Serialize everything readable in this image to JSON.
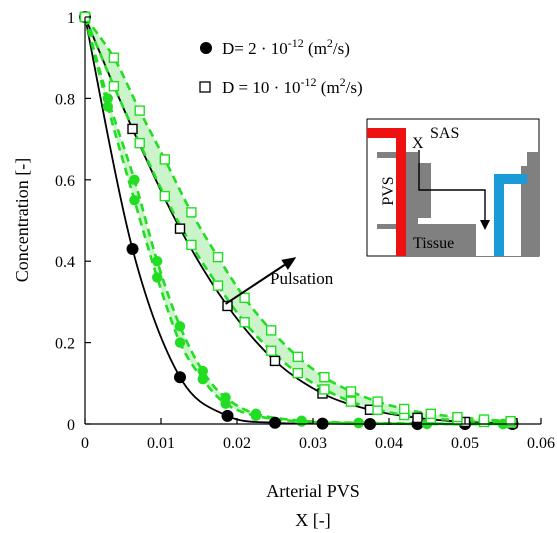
{
  "chart_data": {
    "type": "line",
    "xlabel": "Arterial PVS",
    "xlabel2": "X [-]",
    "ylabel": "Concentration [-]",
    "xlim": [
      0,
      0.06
    ],
    "ylim": [
      0,
      1
    ],
    "x_ticks": [
      "0",
      "0.01",
      "0.02",
      "0.03",
      "0.04",
      "0.05",
      "0.06"
    ],
    "y_ticks": [
      "0",
      "0.2",
      "0.4",
      "0.6",
      "0.8",
      "1"
    ],
    "grid": false,
    "legend_position": "top-center",
    "series": [
      {
        "name": "D= 2 · 10-12 (m2/s)",
        "marker": "filled-circle",
        "color": "#000000",
        "line": "solid",
        "points": [
          {
            "x": 0,
            "y": 1.0
          },
          {
            "x": 0.00625,
            "y": 0.43
          },
          {
            "x": 0.0125,
            "y": 0.115
          },
          {
            "x": 0.01875,
            "y": 0.02
          },
          {
            "x": 0.025,
            "y": 0.003
          },
          {
            "x": 0.03125,
            "y": 0.001
          },
          {
            "x": 0.0375,
            "y": 0.0
          },
          {
            "x": 0.04375,
            "y": 0.0
          },
          {
            "x": 0.05,
            "y": 0.0
          },
          {
            "x": 0.05625,
            "y": 0.0
          }
        ]
      },
      {
        "name": "D = 10 · 10-12 (m2/s)",
        "marker": "open-square",
        "color": "#000000",
        "line": "solid",
        "points": [
          {
            "x": 0,
            "y": 1.0
          },
          {
            "x": 0.00625,
            "y": 0.725
          },
          {
            "x": 0.0125,
            "y": 0.48
          },
          {
            "x": 0.01875,
            "y": 0.29
          },
          {
            "x": 0.025,
            "y": 0.155
          },
          {
            "x": 0.03125,
            "y": 0.075
          },
          {
            "x": 0.0375,
            "y": 0.035
          },
          {
            "x": 0.04375,
            "y": 0.015
          },
          {
            "x": 0.05,
            "y": 0.005
          },
          {
            "x": 0.05625,
            "y": 0.002
          }
        ]
      },
      {
        "name": "",
        "marker": "filled-circle",
        "color": "#22dd22",
        "line": "dashed",
        "band": "low",
        "points": [
          {
            "x": 0,
            "y": 1.0
          },
          {
            "x": 0.003,
            "y": 0.78
          },
          {
            "x": 0.0065,
            "y": 0.55
          },
          {
            "x": 0.0095,
            "y": 0.36
          },
          {
            "x": 0.0125,
            "y": 0.2
          },
          {
            "x": 0.0155,
            "y": 0.11
          },
          {
            "x": 0.0185,
            "y": 0.05
          },
          {
            "x": 0.0225,
            "y": 0.02
          },
          {
            "x": 0.0285,
            "y": 0.006
          },
          {
            "x": 0.036,
            "y": 0.002
          },
          {
            "x": 0.045,
            "y": 0.0
          },
          {
            "x": 0.055,
            "y": 0.0
          }
        ]
      },
      {
        "name": "",
        "marker": "filled-circle",
        "color": "#22dd22",
        "line": "dashed",
        "band": "high",
        "points": [
          {
            "x": 0,
            "y": 1.0
          },
          {
            "x": 0.003,
            "y": 0.8
          },
          {
            "x": 0.0065,
            "y": 0.6
          },
          {
            "x": 0.0095,
            "y": 0.4
          },
          {
            "x": 0.0125,
            "y": 0.24
          },
          {
            "x": 0.0155,
            "y": 0.13
          },
          {
            "x": 0.0185,
            "y": 0.065
          },
          {
            "x": 0.0225,
            "y": 0.025
          },
          {
            "x": 0.0285,
            "y": 0.008
          },
          {
            "x": 0.036,
            "y": 0.003
          },
          {
            "x": 0.045,
            "y": 0.001
          },
          {
            "x": 0.055,
            "y": 0.0
          }
        ]
      },
      {
        "name": "",
        "marker": "open-square",
        "color": "#22dd22",
        "line": "dashed",
        "band": "low",
        "points": [
          {
            "x": 0,
            "y": 1.0
          },
          {
            "x": 0.0038,
            "y": 0.83
          },
          {
            "x": 0.0072,
            "y": 0.69
          },
          {
            "x": 0.0105,
            "y": 0.56
          },
          {
            "x": 0.014,
            "y": 0.44
          },
          {
            "x": 0.0175,
            "y": 0.34
          },
          {
            "x": 0.021,
            "y": 0.25
          },
          {
            "x": 0.0245,
            "y": 0.18
          },
          {
            "x": 0.028,
            "y": 0.125
          },
          {
            "x": 0.0315,
            "y": 0.085
          },
          {
            "x": 0.035,
            "y": 0.055
          },
          {
            "x": 0.0385,
            "y": 0.035
          },
          {
            "x": 0.042,
            "y": 0.022
          },
          {
            "x": 0.0455,
            "y": 0.014
          },
          {
            "x": 0.049,
            "y": 0.009
          },
          {
            "x": 0.0525,
            "y": 0.005
          },
          {
            "x": 0.056,
            "y": 0.003
          }
        ]
      },
      {
        "name": "",
        "marker": "open-square",
        "color": "#22dd22",
        "line": "dashed",
        "band": "high",
        "points": [
          {
            "x": 0,
            "y": 1.0
          },
          {
            "x": 0.0038,
            "y": 0.9
          },
          {
            "x": 0.0072,
            "y": 0.77
          },
          {
            "x": 0.0105,
            "y": 0.65
          },
          {
            "x": 0.014,
            "y": 0.52
          },
          {
            "x": 0.0175,
            "y": 0.41
          },
          {
            "x": 0.021,
            "y": 0.31
          },
          {
            "x": 0.0245,
            "y": 0.23
          },
          {
            "x": 0.028,
            "y": 0.165
          },
          {
            "x": 0.0315,
            "y": 0.115
          },
          {
            "x": 0.035,
            "y": 0.08
          },
          {
            "x": 0.0385,
            "y": 0.055
          },
          {
            "x": 0.042,
            "y": 0.037
          },
          {
            "x": 0.0455,
            "y": 0.025
          },
          {
            "x": 0.049,
            "y": 0.017
          },
          {
            "x": 0.0525,
            "y": 0.011
          },
          {
            "x": 0.056,
            "y": 0.007
          }
        ]
      }
    ],
    "legend": [
      {
        "label_prefix": "D= 2 · 10",
        "exponent": "-12",
        "unit_prefix": " (m",
        "unit_exponent": "2",
        "unit_suffix": "/s)",
        "marker": "filled-circle"
      },
      {
        "label_prefix": "D = 10 · 10",
        "exponent": "-12",
        "unit_prefix": " (m",
        "unit_exponent": "2",
        "unit_suffix": "/s)",
        "marker": "open-square"
      }
    ],
    "annotation": {
      "text": "Pulsation",
      "arrow_from": {
        "x": 0.0185,
        "y": 0.295
      },
      "arrow_to": {
        "x": 0.0278,
        "y": 0.41
      }
    },
    "inset": {
      "labels": {
        "sas": "SAS",
        "x": "X",
        "pvs": "PVS",
        "tissue": "Tissue"
      },
      "colors": {
        "artery": "#ee1111",
        "vein": "#1a9ad6",
        "tissue": "#808080",
        "fluid": "#ffffff"
      }
    }
  }
}
